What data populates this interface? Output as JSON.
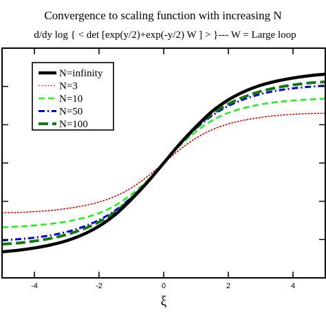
{
  "chart_data": {
    "type": "line",
    "title": "Convergence to scaling function with increasing N",
    "subtitle": "d/dy log { < det [exp(y/2)+exp(-y/2) W ] > }--- W = Large loop",
    "xlabel": "ξ",
    "ylabel": "",
    "xlim": [
      -5,
      5
    ],
    "ylim": [
      -3,
      3
    ],
    "xticks": [
      -4,
      -2,
      0,
      2,
      4
    ],
    "xtick_labels": [
      "-4",
      "-2",
      "0",
      "2",
      "4"
    ],
    "yticks": [
      -2,
      -1,
      0,
      1,
      2
    ],
    "grid": false,
    "legend": "top-left",
    "series": [
      {
        "name": "N=infinity",
        "color": "#000000",
        "style": "solid",
        "x": [
          -5,
          -4.5,
          -4,
          -3.5,
          -3,
          -2.5,
          -2,
          -1.5,
          -1,
          -0.5,
          0,
          0.5,
          1,
          1.5,
          2,
          2.5,
          3,
          3.5,
          4,
          4.5,
          5
        ],
        "y": [
          -2.32,
          -2.28,
          -2.22,
          -2.14,
          -2.03,
          -1.87,
          -1.65,
          -1.35,
          -0.95,
          -0.5,
          0,
          0.5,
          0.95,
          1.35,
          1.65,
          1.87,
          2.03,
          2.14,
          2.22,
          2.28,
          2.32
        ]
      },
      {
        "name": "N=3",
        "color": "#cc0000",
        "style": "dotted",
        "x": [
          -5,
          -4.5,
          -4,
          -3.5,
          -3,
          -2.5,
          -2,
          -1.5,
          -1,
          -0.5,
          0,
          0.5,
          1,
          1.5,
          2,
          2.5,
          3,
          3.5,
          4,
          4.5,
          5
        ],
        "y": [
          -1.3,
          -1.29,
          -1.27,
          -1.24,
          -1.19,
          -1.12,
          -1.02,
          -0.87,
          -0.65,
          -0.35,
          0,
          0.35,
          0.65,
          0.87,
          1.02,
          1.12,
          1.19,
          1.24,
          1.27,
          1.29,
          1.3
        ]
      },
      {
        "name": "N=10",
        "color": "#22ee22",
        "style": "dashed",
        "x": [
          -5,
          -4.5,
          -4,
          -3.5,
          -3,
          -2.5,
          -2,
          -1.5,
          -1,
          -0.5,
          0,
          0.5,
          1,
          1.5,
          2,
          2.5,
          3,
          3.5,
          4,
          4.5,
          5
        ],
        "y": [
          -1.68,
          -1.66,
          -1.63,
          -1.59,
          -1.53,
          -1.44,
          -1.31,
          -1.11,
          -0.82,
          -0.45,
          0,
          0.45,
          0.82,
          1.11,
          1.31,
          1.44,
          1.53,
          1.59,
          1.63,
          1.66,
          1.68
        ]
      },
      {
        "name": "N=50",
        "color": "#0000cc",
        "style": "dashdot",
        "x": [
          -5,
          -4.5,
          -4,
          -3.5,
          -3,
          -2.5,
          -2,
          -1.5,
          -1,
          -0.5,
          0,
          0.5,
          1,
          1.5,
          2,
          2.5,
          3,
          3.5,
          4,
          4.5,
          5
        ],
        "y": [
          -2.02,
          -1.99,
          -1.95,
          -1.89,
          -1.8,
          -1.67,
          -1.49,
          -1.24,
          -0.9,
          -0.48,
          0,
          0.48,
          0.9,
          1.24,
          1.49,
          1.67,
          1.8,
          1.89,
          1.95,
          1.99,
          2.02
        ]
      },
      {
        "name": "N=100",
        "color": "#117711",
        "style": "longdash",
        "x": [
          -5,
          -4.5,
          -4,
          -3.5,
          -3,
          -2.5,
          -2,
          -1.5,
          -1,
          -0.5,
          0,
          0.5,
          1,
          1.5,
          2,
          2.5,
          3,
          3.5,
          4,
          4.5,
          5
        ],
        "y": [
          -2.12,
          -2.09,
          -2.04,
          -1.97,
          -1.87,
          -1.73,
          -1.54,
          -1.28,
          -0.92,
          -0.49,
          0,
          0.49,
          0.92,
          1.28,
          1.54,
          1.73,
          1.87,
          1.97,
          2.04,
          2.09,
          2.12
        ]
      }
    ]
  }
}
